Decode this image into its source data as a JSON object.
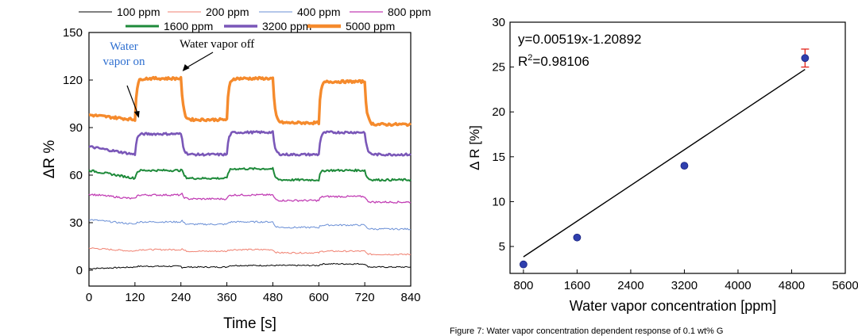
{
  "chart_data": [
    {
      "type": "line",
      "xlabel": "Time [s]",
      "ylabel": "ΔR %",
      "xlim": [
        0,
        840
      ],
      "ylim": [
        -10,
        150
      ],
      "xticks": [
        "0",
        "120",
        "240",
        "360",
        "480",
        "600",
        "720",
        "840"
      ],
      "yticks": [
        "0",
        "30",
        "60",
        "90",
        "120",
        "150"
      ],
      "legend": {
        "placement": "top",
        "columns": 4
      },
      "on_intervals": [
        [
          120,
          240
        ],
        [
          360,
          480
        ],
        [
          600,
          720
        ]
      ],
      "series": [
        {
          "name": "100 ppm",
          "color": "#000000",
          "width": 1,
          "off": [
            1,
            2,
            3,
            2
          ],
          "on": [
            0.5,
            1,
            1
          ]
        },
        {
          "name": "200 ppm",
          "color": "#f08070",
          "width": 1,
          "off": [
            14,
            12,
            11,
            10
          ],
          "on": [
            1,
            1,
            1
          ]
        },
        {
          "name": "400 ppm",
          "color": "#6a8fd6",
          "width": 1,
          "off": [
            32,
            29,
            27,
            26
          ],
          "on": [
            1.5,
            1.5,
            1.5
          ]
        },
        {
          "name": "800 ppm",
          "color": "#c23fb5",
          "width": 1.3,
          "off": [
            48,
            45,
            44,
            43
          ],
          "on": [
            2.5,
            2.5,
            2.5
          ]
        },
        {
          "name": "1600 ppm",
          "color": "#1e8a3a",
          "width": 2,
          "off": [
            63,
            58,
            57,
            57
          ],
          "on": [
            5,
            6,
            6
          ]
        },
        {
          "name": "3200 ppm",
          "color": "#7a57b8",
          "width": 2.6,
          "off": [
            78,
            73,
            73,
            73
          ],
          "on": [
            13,
            14,
            14
          ]
        },
        {
          "name": "5000 ppm",
          "color": "#f58a2c",
          "width": 3.4,
          "off": [
            98,
            95,
            93,
            92
          ],
          "on": [
            26,
            26,
            26
          ]
        }
      ],
      "annotations": [
        {
          "text_lines": [
            "Water",
            "vapor on"
          ],
          "color": "#2e6fd0",
          "x": 130,
          "y": 96
        },
        {
          "text_lines": [
            "Water vapor off"
          ],
          "color": "#a32020",
          "x": 240,
          "y": 124
        }
      ]
    },
    {
      "type": "scatter",
      "xlabel": "Water vapor concentration [ppm]",
      "ylabel": "Δ R [%]",
      "xlim": [
        600,
        5600
      ],
      "ylim": [
        2,
        30
      ],
      "xticks": [
        "800",
        "1600",
        "2400",
        "3200",
        "4000",
        "4800",
        "5600"
      ],
      "yticks": [
        "5",
        "10",
        "15",
        "20",
        "25",
        "30"
      ],
      "points": [
        {
          "x": 800,
          "y": 3
        },
        {
          "x": 1600,
          "y": 6
        },
        {
          "x": 3200,
          "y": 14
        },
        {
          "x": 5000,
          "y": 26,
          "yerr": 1
        }
      ],
      "fit": {
        "slope": 0.00519,
        "intercept": -1.20892,
        "x_from": 800,
        "x_to": 5000
      },
      "equation": "y=0.00519x-1.20892",
      "r2_label": "R",
      "r2_sup": "2",
      "r2_value": "=0.98106",
      "marker_color": "#2f3fae",
      "errorbar_color": "#e2231a"
    }
  ],
  "caption": "Figure 7: Water vapor concentration dependent response of 0.1 wt% G"
}
